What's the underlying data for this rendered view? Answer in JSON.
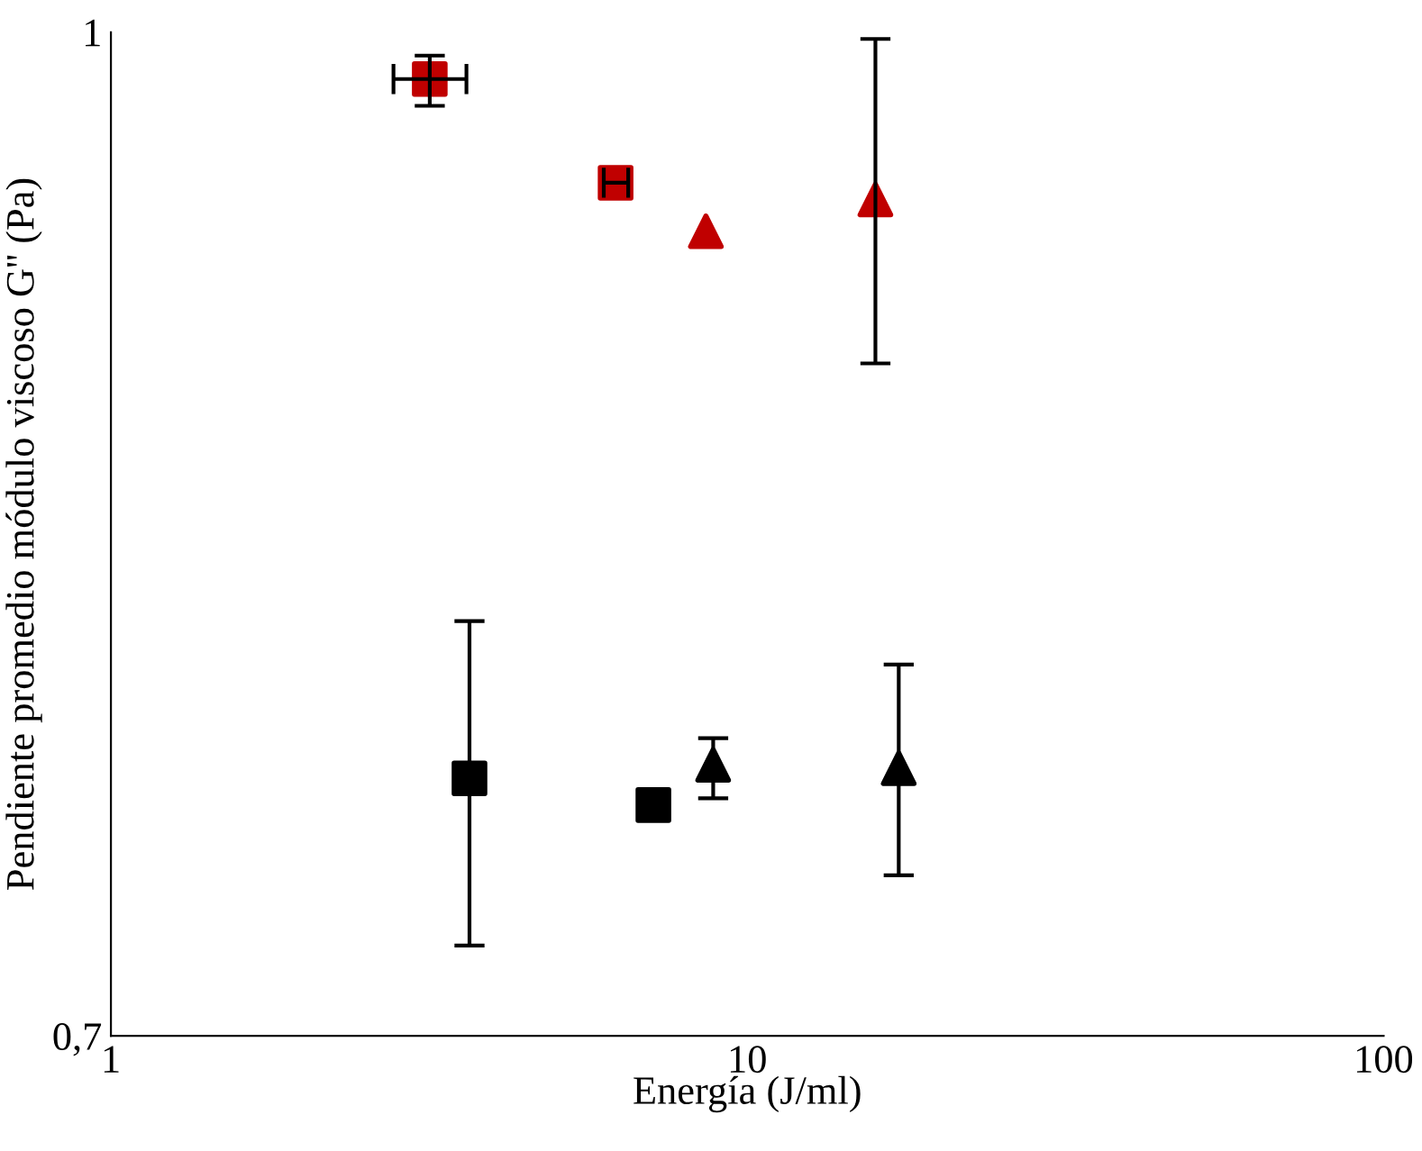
{
  "chart_data": {
    "type": "scatter",
    "xlabel": "Energía (J/ml)",
    "ylabel": "Pendiente promedio módulo viscoso G'' (Pa)",
    "log": "x",
    "xlim": [
      1,
      100
    ],
    "xticks": [
      1,
      10,
      100
    ],
    "ylim": [
      0.7,
      1
    ],
    "yticks": [
      {
        "value": 0.7,
        "label": "0,7"
      },
      1
    ],
    "grid": false,
    "legend": false,
    "series": [
      {
        "color": "#c00000",
        "marker": "square",
        "x": [
          3.17
        ],
        "values": [
          0.986
        ],
        "errors": [
          [
            0.978,
            0.993
          ]
        ],
        "xerrors": [
          [
            2.78,
            3.62
          ]
        ]
      },
      {
        "color": "#c00000",
        "marker": "square",
        "x": [
          6.21
        ],
        "values": [
          0.955
        ],
        "errors": [
          null
        ],
        "xerrors": [
          [
            5.95,
            6.5
          ]
        ]
      },
      {
        "color": "#c00000",
        "marker": "triangle",
        "x": [
          8.61
        ],
        "values": [
          0.9405
        ],
        "errors": [
          null
        ],
        "xerrors": [
          null
        ]
      },
      {
        "color": "#c00000",
        "marker": "triangle",
        "x": [
          15.9
        ],
        "values": [
          0.95
        ],
        "errors": [
          [
            0.901,
            0.998
          ]
        ],
        "xerrors": [
          null
        ]
      },
      {
        "color": "#000000",
        "marker": "square",
        "x": [
          3.66
        ],
        "values": [
          0.777
        ],
        "errors": [
          [
            0.727,
            0.824
          ]
        ],
        "xerrors": [
          null
        ]
      },
      {
        "color": "#000000",
        "marker": "square",
        "x": [
          7.12
        ],
        "values": [
          0.769
        ],
        "errors": [
          null
        ],
        "xerrors": [
          null
        ]
      },
      {
        "color": "#000000",
        "marker": "triangle",
        "x": [
          8.84
        ],
        "values": [
          0.781
        ],
        "errors": [
          [
            0.771,
            0.789
          ]
        ],
        "xerrors": [
          null
        ]
      },
      {
        "color": "#000000",
        "marker": "triangle",
        "x": [
          17.3
        ],
        "values": [
          0.78
        ],
        "errors": [
          [
            0.748,
            0.811
          ]
        ],
        "xerrors": [
          null
        ]
      }
    ]
  }
}
